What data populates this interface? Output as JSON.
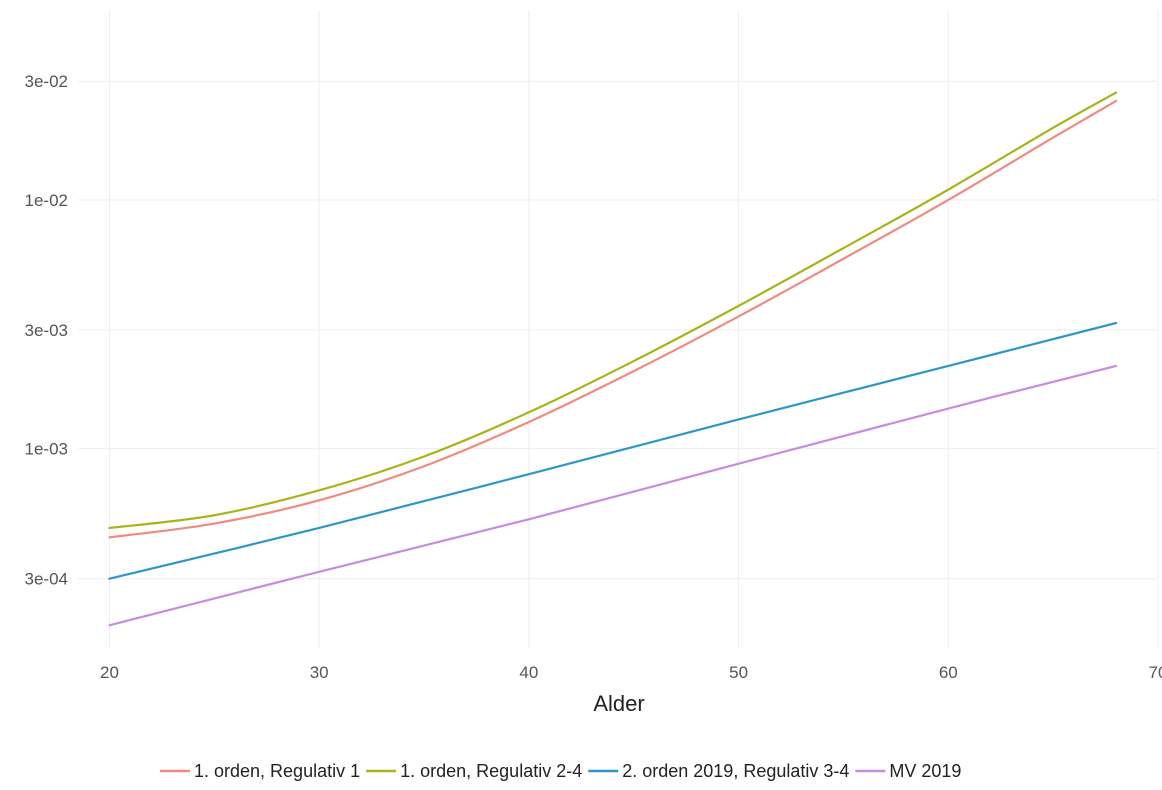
{
  "chart_data": {
    "type": "line",
    "title": "",
    "xlabel": "Alder",
    "ylabel": "",
    "xlim": [
      18.5,
      70
    ],
    "ylim": [
      0.000158,
      0.058
    ],
    "yscale": "log",
    "grid": true,
    "legend_position": "bottom",
    "x_ticks": [
      20,
      30,
      40,
      50,
      60,
      70
    ],
    "x_tick_labels": [
      "20",
      "30",
      "40",
      "50",
      "60",
      "70"
    ],
    "y_ticks": [
      0.0003,
      0.001,
      0.003,
      0.01,
      0.03
    ],
    "y_tick_labels": [
      "3e-04",
      "1e-03",
      "3e-03",
      "1e-02",
      "3e-02"
    ],
    "series": [
      {
        "name": "1. orden, Regulativ 1",
        "color": "#F08A80",
        "x": [
          20,
          25,
          30,
          35,
          40,
          45,
          50,
          55,
          60,
          65,
          68
        ],
        "y": [
          0.00044,
          0.0005,
          0.00062,
          0.00085,
          0.00128,
          0.00205,
          0.0034,
          0.0058,
          0.01,
          0.0178,
          0.025
        ]
      },
      {
        "name": "1. orden, Regulativ 2-4",
        "color": "#A8B41A",
        "x": [
          20,
          25,
          30,
          35,
          40,
          45,
          50,
          55,
          60,
          65,
          68
        ],
        "y": [
          0.00048,
          0.00054,
          0.00068,
          0.00093,
          0.0014,
          0.00225,
          0.00375,
          0.0064,
          0.011,
          0.0195,
          0.027
        ]
      },
      {
        "name": "2. orden 2019, Regulativ 3-4",
        "color": "#2E96C8",
        "x": [
          20,
          30,
          40,
          50,
          60,
          68
        ],
        "y": [
          0.0003,
          0.00048,
          0.00079,
          0.00131,
          0.00215,
          0.0032
        ]
      },
      {
        "name": "MV 2019",
        "color": "#C98BE0",
        "x": [
          20,
          30,
          40,
          50,
          60,
          68
        ],
        "y": [
          0.000195,
          0.00032,
          0.00052,
          0.00087,
          0.00145,
          0.00215
        ]
      }
    ]
  }
}
